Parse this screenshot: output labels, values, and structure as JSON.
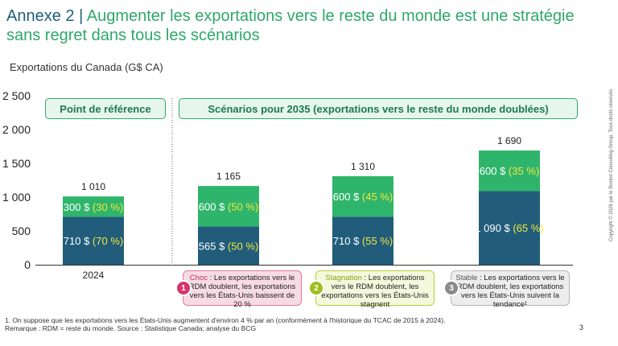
{
  "title": {
    "annex": "Annexe 2",
    "separator": "|",
    "headline": "Augmenter les exportations vers le reste du monde est une stratégie sans regret dans tous les scénarios"
  },
  "y_axis_title": "Exportations du Canada (G$ CA)",
  "pills": {
    "reference": "Point de référence",
    "scenarios": "Scénarios pour 2035 (exportations vers le reste du monde doublées)"
  },
  "scenarios": [
    {
      "num": "1",
      "keyword": "Choc",
      "text": " : Les exportations vers le RDM doublent, les exportations vers les États-Unis baissent de 20 %",
      "color": "#d6366a",
      "bg": "#f7dbe4",
      "border": "#e07a98",
      "kwcolor": "#c0305e"
    },
    {
      "num": "2",
      "keyword": "Stagnation",
      "text": " : Les exportations vers le RDM doublent, les exportations vers les États-Unis stagnent",
      "color": "#9fbf1e",
      "bg": "#f4f8dc",
      "border": "#b8cf3a",
      "kwcolor": "#8aa215"
    },
    {
      "num": "3",
      "keyword": "Stable",
      "text": " : Les exportations vers le RDM doublent, les exportations vers les États-Unis suivent la tendance¹",
      "color": "#8a8a8a",
      "bg": "#ededed",
      "border": "#b5b5b5",
      "kwcolor": "#555555"
    }
  ],
  "footnotes": {
    "note1": "1. On suppose que les exportations vers les États-Unis augmentent d'environ 4 % par an (conformément à l'historique du TCAC de 2015 à 2024).",
    "remark": "Remarque : RDM = reste du monde. Source : Statistique Canada; analyse du BCG"
  },
  "page_number": "3",
  "copyright": "Copyright © 2026 par le Boston Consulting Group. Tous droits réservés.",
  "colors": {
    "us_bar": "#215d7b",
    "rdm_bar": "#2fb56b",
    "pct": "#f1e63c"
  },
  "chart_data": {
    "type": "bar",
    "stacked": true,
    "categories": [
      "2024",
      "",
      "",
      ""
    ],
    "ylim": [
      0,
      2500
    ],
    "yticks": [
      0,
      500,
      1000,
      1500,
      2000,
      2500
    ],
    "ytick_labels": [
      "0",
      "500",
      "1 000",
      "1 500",
      "2 000",
      "2 500"
    ],
    "totals": [
      1010,
      1165,
      1310,
      1690
    ],
    "total_labels": [
      "1 010",
      "1 165",
      "1 310",
      "1 690"
    ],
    "series": [
      {
        "values": [
          710,
          565,
          710,
          1090
        ],
        "labels": [
          "710 $",
          "565 $",
          "710 $",
          "1 090 $"
        ],
        "pct_labels": [
          "(70 %)",
          "(50 %)",
          "(55 %)",
          "(65 %)"
        ]
      },
      {
        "values": [
          300,
          600,
          600,
          600
        ],
        "labels": [
          "300 $",
          "600 $",
          "600 $",
          "600 $"
        ],
        "pct_labels": [
          "(30 %)",
          "(50 %)",
          "(45 %)",
          "(35 %)"
        ]
      }
    ]
  }
}
